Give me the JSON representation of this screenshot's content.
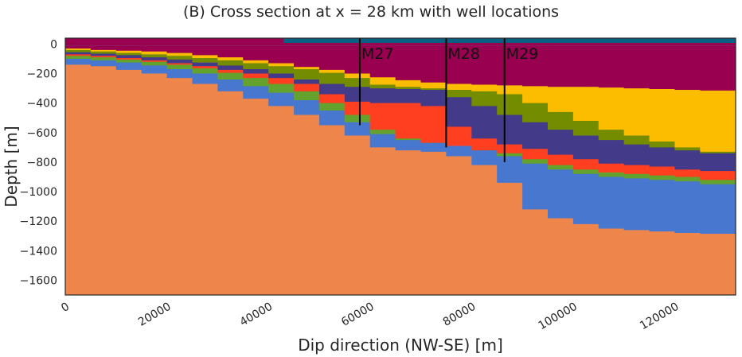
{
  "chart_data": {
    "type": "area",
    "title": "(B) Cross section at x = 28 km with well locations",
    "xlabel": "Dip direction (NW-SE) [m]",
    "ylabel": "Depth [m]",
    "xlim": [
      0,
      132000
    ],
    "ylim": [
      -1700,
      40
    ],
    "x_ticks": [
      "0",
      "20000",
      "40000",
      "60000",
      "80000",
      "100000",
      "120000"
    ],
    "y_ticks": [
      "0",
      "−200",
      "−400",
      "−600",
      "−800",
      "−1000",
      "−1200",
      "−1400",
      "−1600"
    ],
    "grid": false,
    "x": [
      0,
      5000,
      10000,
      15000,
      20000,
      25000,
      30000,
      35000,
      40000,
      45000,
      50000,
      55000,
      60000,
      65000,
      70000,
      75000,
      80000,
      85000,
      90000,
      95000,
      100000,
      105000,
      110000,
      115000,
      120000,
      125000,
      132000
    ],
    "layers": [
      {
        "color": "#0b5f83",
        "top": [
          -10,
          -10,
          -10,
          -10,
          -10,
          -10,
          -10,
          -10,
          -10,
          -10,
          -10,
          -10,
          -10,
          -10,
          -10,
          -10,
          -10,
          -10,
          -10,
          -10,
          -10,
          -10,
          -10,
          -10,
          -10,
          -10,
          -10
        ]
      },
      {
        "color": "#990050",
        "top": [
          -10,
          -10,
          -10,
          -10,
          -10,
          -10,
          -10,
          -10,
          -10,
          -10,
          -10,
          -10,
          -10,
          -10,
          -10,
          -10,
          -10,
          -10,
          -10,
          -10,
          -10,
          -10,
          -10,
          -10,
          -10,
          -10,
          -10
        ]
      },
      {
        "color": "#fcbd00",
        "top": [
          -30,
          -40,
          -45,
          -50,
          -60,
          -75,
          -90,
          -110,
          -130,
          -155,
          -175,
          -200,
          -225,
          -245,
          -260,
          -270,
          -275,
          -280,
          -285,
          -290,
          -290,
          -295,
          -300,
          -305,
          -310,
          -315,
          -320
        ]
      },
      {
        "color": "#738c00",
        "top": [
          -40,
          -50,
          -60,
          -70,
          -80,
          -95,
          -110,
          -130,
          -150,
          -170,
          -195,
          -230,
          -275,
          -290,
          -300,
          -310,
          -320,
          -340,
          -400,
          -460,
          -520,
          -580,
          -620,
          -660,
          -700,
          -730,
          -760
        ]
      },
      {
        "color": "#433a8a",
        "top": [
          -55,
          -65,
          -75,
          -90,
          -105,
          -125,
          -145,
          -170,
          -200,
          -240,
          -270,
          -290,
          -300,
          -305,
          -310,
          -360,
          -420,
          -480,
          -530,
          -580,
          -620,
          -650,
          -680,
          -700,
          -720,
          -740,
          -760
        ]
      },
      {
        "color": "#ff3f1f",
        "top": [
          -70,
          -80,
          -95,
          -110,
          -130,
          -150,
          -175,
          -200,
          -230,
          -270,
          -340,
          -390,
          -400,
          -400,
          -420,
          -560,
          -640,
          -680,
          -710,
          -750,
          -780,
          -810,
          -820,
          -830,
          -850,
          -860,
          -870
        ]
      },
      {
        "color": "#63a22c",
        "top": [
          -80,
          -90,
          -105,
          -120,
          -140,
          -165,
          -195,
          -230,
          -270,
          -320,
          -400,
          -480,
          -580,
          -640,
          -670,
          -690,
          -720,
          -740,
          -780,
          -820,
          -850,
          -870,
          -880,
          -890,
          -900,
          -920,
          -940
        ]
      },
      {
        "color": "#4877d0",
        "top": [
          -100,
          -110,
          -125,
          -145,
          -170,
          -200,
          -240,
          -285,
          -330,
          -380,
          -450,
          -530,
          -610,
          -650,
          -670,
          -690,
          -720,
          -760,
          -810,
          -850,
          -880,
          -900,
          -910,
          -920,
          -930,
          -950,
          -970
        ]
      },
      {
        "color": "#ee854a",
        "top": [
          -140,
          -150,
          -175,
          -200,
          -230,
          -270,
          -320,
          -370,
          -420,
          -480,
          -550,
          -620,
          -700,
          -720,
          -730,
          -760,
          -820,
          -940,
          -1120,
          -1180,
          -1220,
          -1250,
          -1260,
          -1270,
          -1280,
          -1285,
          -1290
        ]
      }
    ],
    "wells": [
      {
        "name": "M27",
        "x": 58000,
        "bottom": -550
      },
      {
        "name": "M28",
        "x": 75000,
        "bottom": -700
      },
      {
        "name": "M29",
        "x": 86500,
        "bottom": -800
      }
    ]
  }
}
